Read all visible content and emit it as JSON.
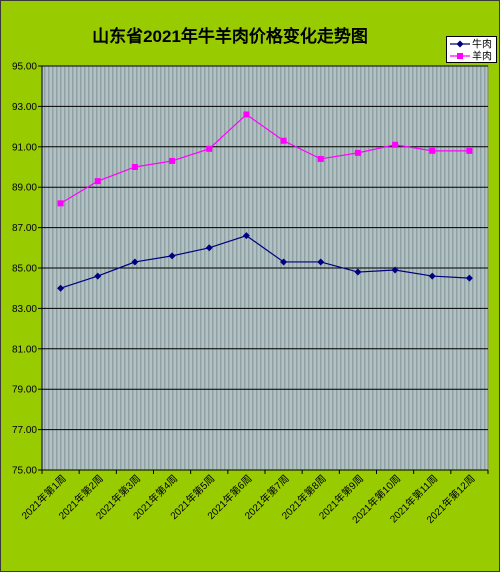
{
  "colors": {
    "background": "#99CC00",
    "plot_background": "#B3C1C2",
    "plot_stripe": "#8EA2A5",
    "gridline": "#000000"
  },
  "chart_data": {
    "type": "line",
    "title": "山东省2021年牛羊肉价格变化走势图",
    "categories": [
      "2021年第1周",
      "2021年第2周",
      "2021年第3周",
      "2021年第4周",
      "2021年第5周",
      "2021年第6周",
      "2021年第7周",
      "2021年第8周",
      "2021年第9周",
      "2021年第10周",
      "2021年第11周",
      "2021年第12周"
    ],
    "series": [
      {
        "name": "牛肉",
        "color": "#000080",
        "marker": "diamond",
        "values": [
          84.0,
          84.6,
          85.3,
          85.6,
          86.0,
          86.6,
          85.3,
          85.3,
          84.8,
          84.9,
          84.6,
          84.5
        ]
      },
      {
        "name": "羊肉",
        "color": "#FF00FF",
        "marker": "square",
        "values": [
          88.2,
          89.3,
          90.0,
          90.3,
          90.9,
          92.6,
          91.3,
          90.4,
          90.7,
          91.1,
          90.8,
          90.8
        ]
      }
    ],
    "ylim": [
      75,
      95
    ],
    "ytick_step": 2,
    "ytick_labels": [
      "75.00",
      "77.00",
      "79.00",
      "81.00",
      "83.00",
      "85.00",
      "87.00",
      "89.00",
      "91.00",
      "93.00",
      "95.00"
    ],
    "grid": true,
    "legend": "top-right"
  }
}
